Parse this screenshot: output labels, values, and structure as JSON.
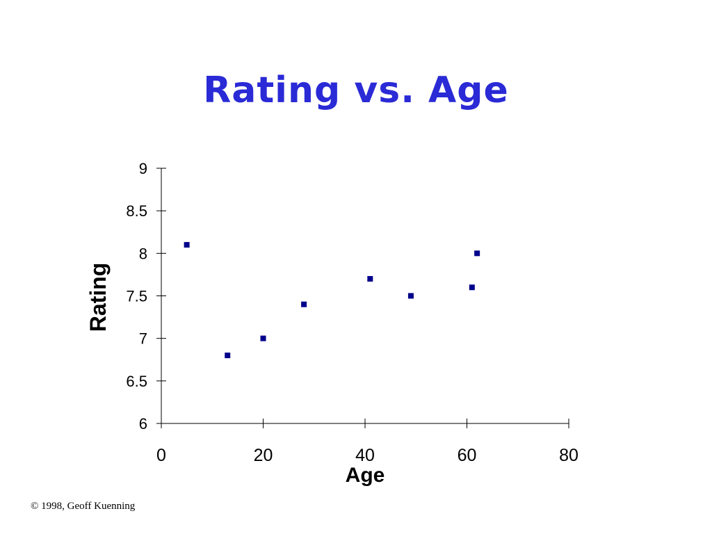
{
  "colors": {
    "title": "#2a2ad6",
    "marker": "#00008b",
    "axis": "#000000"
  },
  "chart_data": {
    "type": "scatter",
    "title": "Rating vs. Age",
    "xlabel": "Age",
    "ylabel": "Rating",
    "xlim": [
      0,
      80
    ],
    "ylim": [
      6,
      9
    ],
    "x_ticks": [
      0,
      20,
      40,
      60,
      80
    ],
    "x_tick_labels": [
      "0",
      "20",
      "40",
      "60",
      "80"
    ],
    "y_ticks": [
      6,
      6.5,
      7,
      7.5,
      8,
      8.5,
      9
    ],
    "y_tick_labels": [
      "6",
      "6.5",
      "7",
      "7.5",
      "8",
      "8.5",
      "9"
    ],
    "grid": false,
    "points": [
      {
        "x": 5,
        "y": 8.1
      },
      {
        "x": 13,
        "y": 6.8
      },
      {
        "x": 20,
        "y": 7.0
      },
      {
        "x": 28,
        "y": 7.4
      },
      {
        "x": 41,
        "y": 7.7
      },
      {
        "x": 49,
        "y": 7.5
      },
      {
        "x": 61,
        "y": 7.6
      },
      {
        "x": 62,
        "y": 8.0
      }
    ]
  },
  "footer": {
    "copyright": "© 1998, Geoff Kuenning"
  }
}
